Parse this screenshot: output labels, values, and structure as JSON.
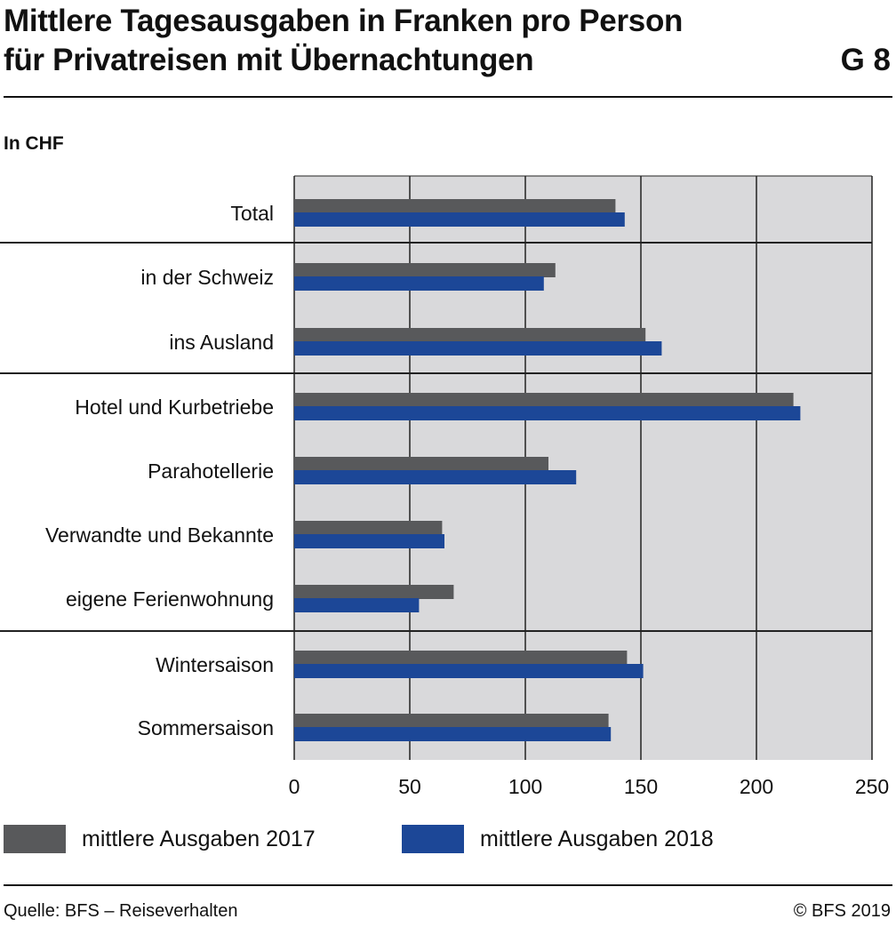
{
  "title_line1": "Mittlere Tagesausgaben in Franken pro Person",
  "title_line2": "für Privatreisen mit Übernachtungen",
  "figure_code": "G 8",
  "unit_label": "In CHF",
  "source": "Quelle: BFS – Reiseverhalten",
  "copyright": "© BFS 2019",
  "colors": {
    "series_2017": "#58595b",
    "series_2018": "#1c4797",
    "plot_background": "#d9d9db",
    "grid": "#222222"
  },
  "chart_data": {
    "type": "bar",
    "orientation": "horizontal",
    "unit": "In CHF",
    "categories": [
      "Total",
      "in der Schweiz",
      "ins Ausland",
      "Hotel und Kurbetriebe",
      "Parahotellerie",
      "Verwandte und Bekannte",
      "eigene Ferienwohnung",
      "Wintersaison",
      "Sommersaison"
    ],
    "series": [
      {
        "name": "mittlere Ausgaben 2017",
        "values": [
          139,
          113,
          152,
          216,
          110,
          64,
          69,
          144,
          136
        ]
      },
      {
        "name": "mittlere Ausgaben 2018",
        "values": [
          143,
          108,
          159,
          219,
          122,
          65,
          54,
          151,
          137
        ]
      }
    ],
    "xlim": [
      0,
      250
    ],
    "xticks": [
      0,
      50,
      100,
      150,
      200,
      250
    ],
    "grid": true,
    "legend_position": "bottom"
  }
}
